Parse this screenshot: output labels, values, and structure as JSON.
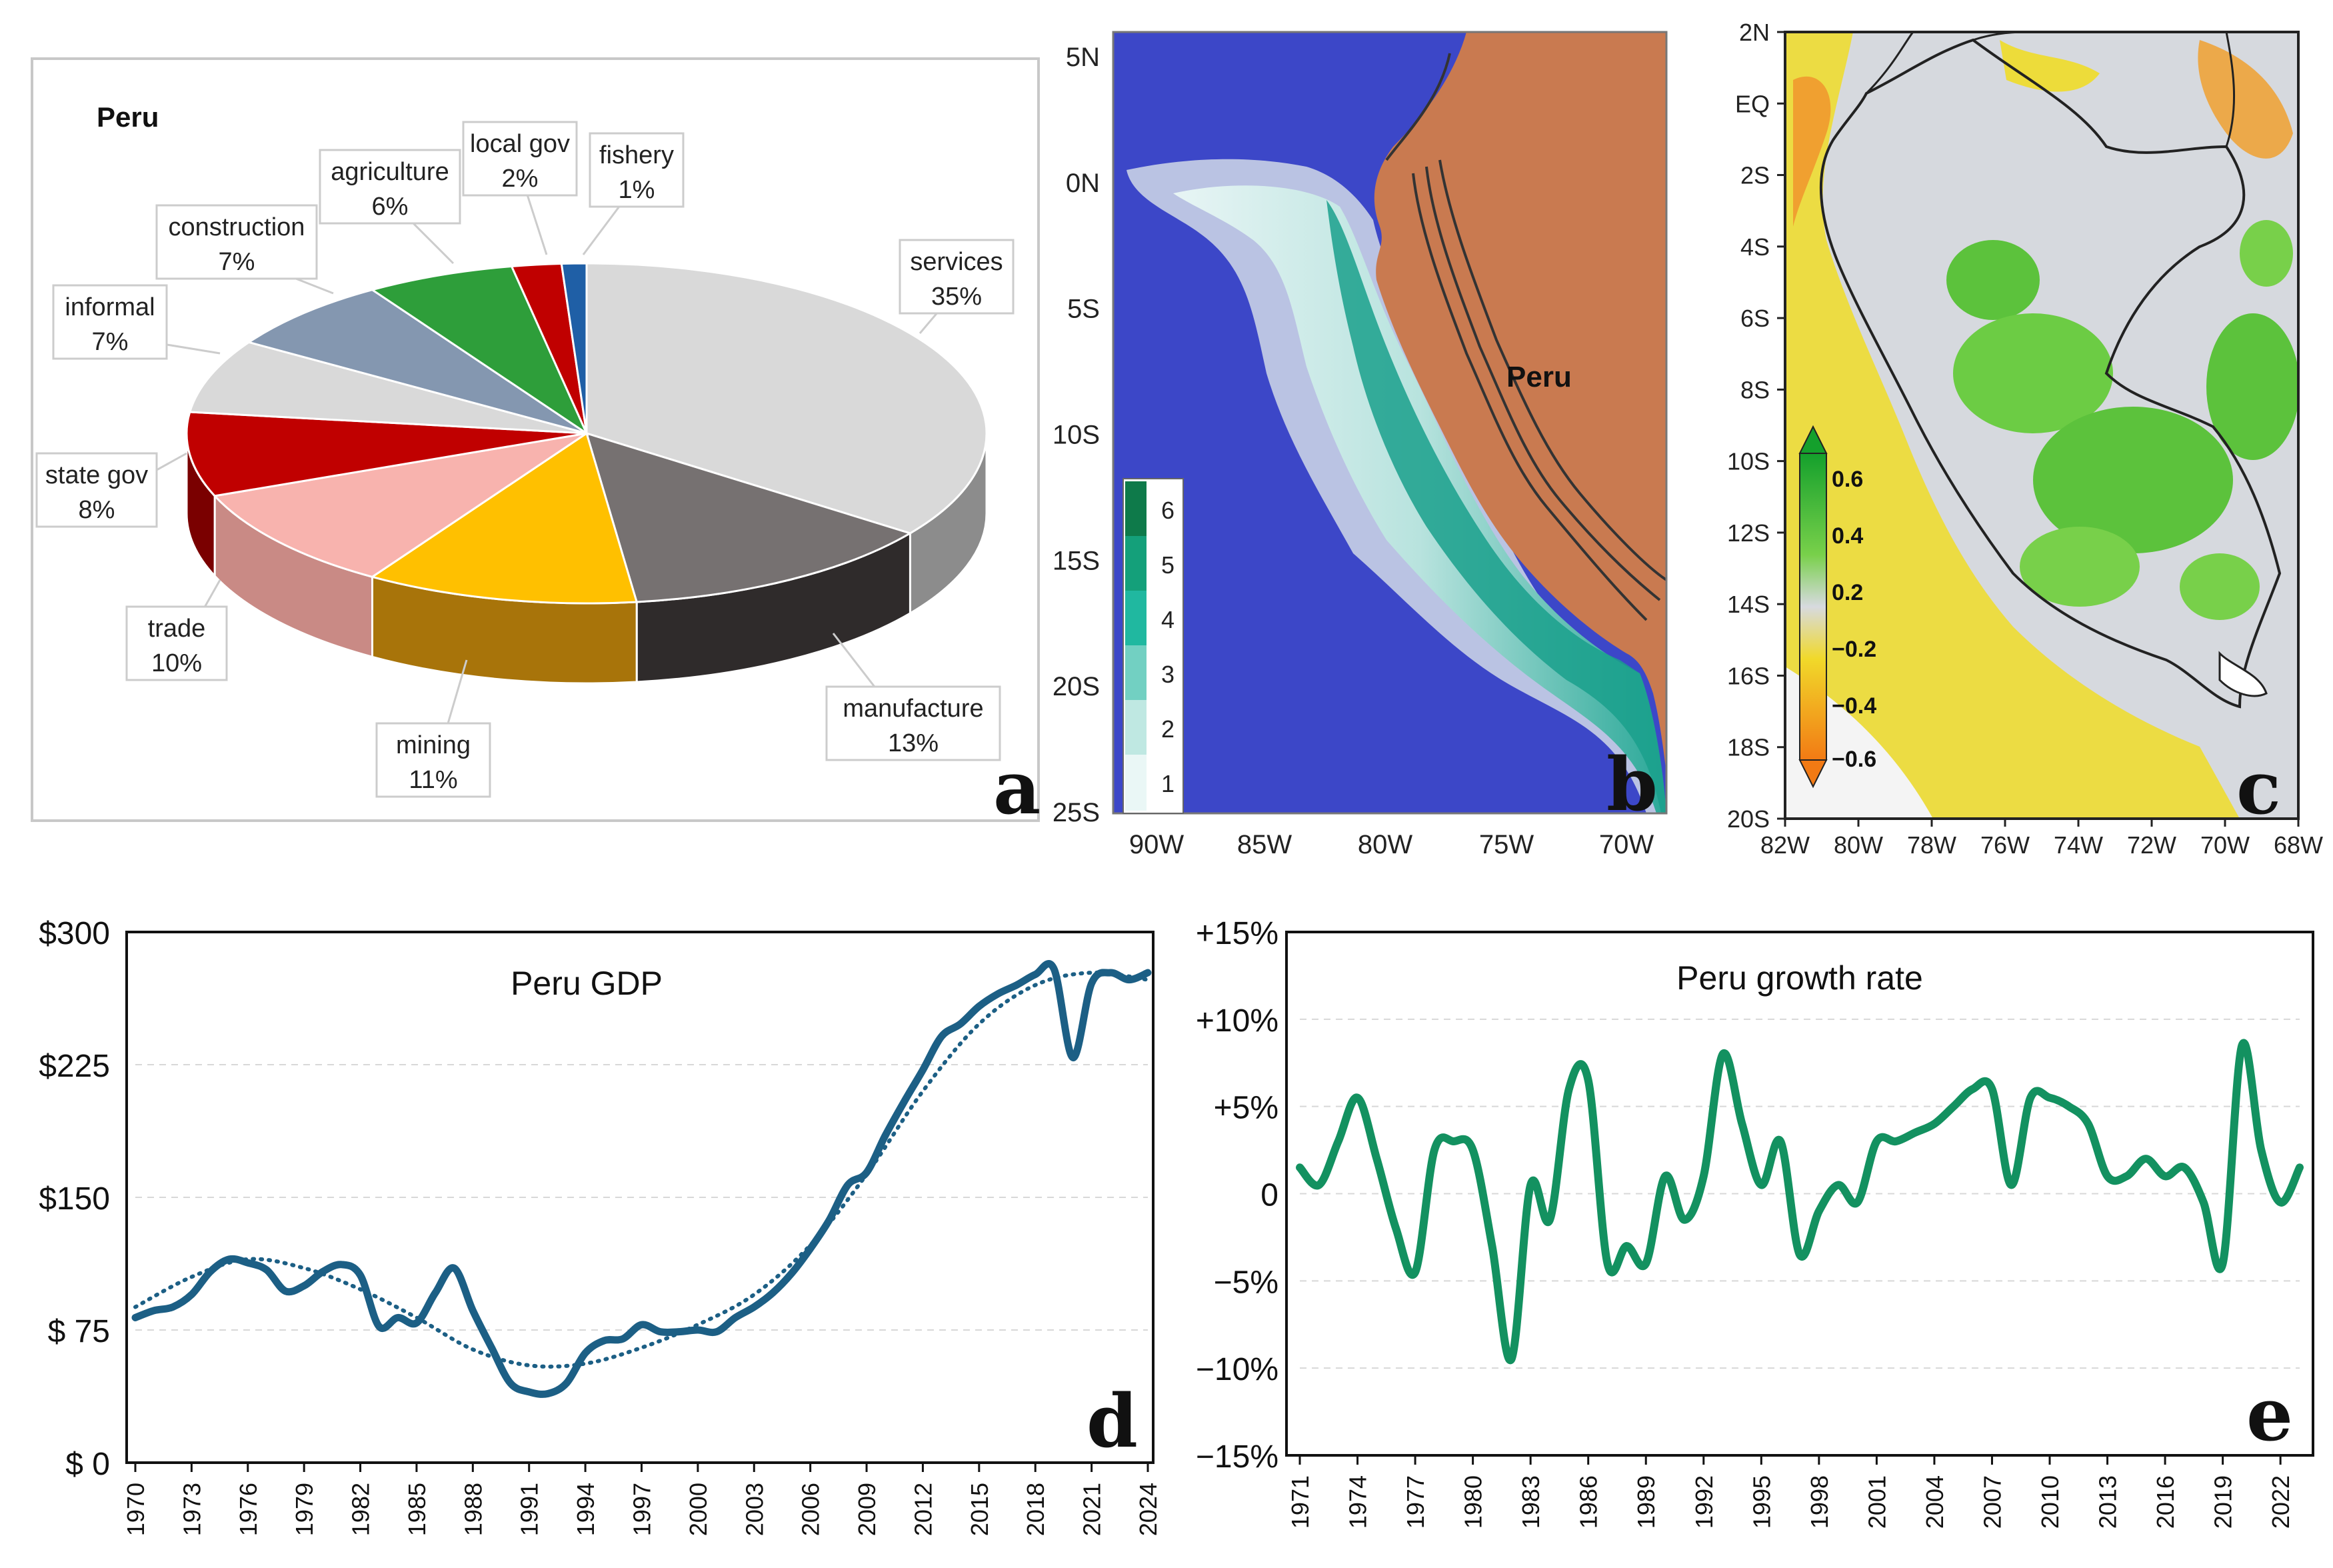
{
  "pie": {
    "title": "Peru",
    "panel_letter": "a",
    "slices": [
      {
        "name": "services",
        "pct": "35%",
        "value": 35,
        "color": "#D9D9D9",
        "side": "#8C8C8C"
      },
      {
        "name": "manufacture",
        "pct": "13%",
        "value": 13,
        "color": "#767171",
        "side": "#2F2B2B"
      },
      {
        "name": "mining",
        "pct": "11%",
        "value": 11,
        "color": "#FFC000",
        "side": "#A8740A"
      },
      {
        "name": "trade",
        "pct": "10%",
        "value": 10,
        "color": "#F8B3AE",
        "side": "#C98A85"
      },
      {
        "name": "state gov",
        "pct": "8%",
        "value": 8,
        "color": "#C00000",
        "side": "#7A0000"
      },
      {
        "name": "informal",
        "pct": "7%",
        "value": 7,
        "color": "#D9D9D9",
        "side": "#9C9C9C"
      },
      {
        "name": "construction",
        "pct": "7%",
        "value": 7,
        "color": "#8497B0",
        "side": "#55667D"
      },
      {
        "name": "agriculture",
        "pct": "6%",
        "value": 6,
        "color": "#2E9E3A",
        "side": "#1C6B24"
      },
      {
        "name": "local gov",
        "pct": "2%",
        "value": 2,
        "color": "#C00000",
        "side": "#7A0000"
      },
      {
        "name": "fishery",
        "pct": "1%",
        "value": 1,
        "color": "#1F5FA6",
        "side": "#143F70"
      }
    ]
  },
  "map_b": {
    "panel_letter": "b",
    "region_label": "Peru",
    "lat_ticks": [
      "5N",
      "0N",
      "5S",
      "10S",
      "15S",
      "20S",
      "25S"
    ],
    "lon_ticks": [
      "90W",
      "85W",
      "80W",
      "75W",
      "70W"
    ],
    "legend": [
      "6",
      "5",
      "4",
      "3",
      "2",
      "1"
    ],
    "ocean_color": "#3C47C8",
    "land_color": "#C97A50"
  },
  "map_c": {
    "panel_letter": "c",
    "lat_ticks": [
      "2N",
      "EQ",
      "2S",
      "4S",
      "6S",
      "8S",
      "10S",
      "12S",
      "14S",
      "16S",
      "18S",
      "20S"
    ],
    "lon_ticks": [
      "82W",
      "80W",
      "78W",
      "76W",
      "74W",
      "72W",
      "70W",
      "68W"
    ],
    "legend": [
      "0.6",
      "0.4",
      "0.2",
      "−0.2",
      "−0.4",
      "−0.6"
    ]
  },
  "chart_data": [
    {
      "type": "line",
      "title": "Peru GDP",
      "panel_letter": "d",
      "ylim": [
        0,
        300
      ],
      "yticks": [
        {
          "value": 300,
          "label": "$300"
        },
        {
          "value": 225,
          "label": "$225"
        },
        {
          "value": 150,
          "label": "$150"
        },
        {
          "value": 75,
          "label": "$  75"
        },
        {
          "value": 0,
          "label": "$    0"
        }
      ],
      "xlim": [
        1970,
        2024
      ],
      "xticks": [
        "1970",
        "1973",
        "1976",
        "1979",
        "1982",
        "1985",
        "1988",
        "1991",
        "1994",
        "1997",
        "2000",
        "2003",
        "2006",
        "2009",
        "2012",
        "2015",
        "2018",
        "2021",
        "2024"
      ],
      "series": [
        {
          "name": "GDP",
          "color": "#1C5F85",
          "x": [
            1970,
            1971,
            1972,
            1973,
            1974,
            1975,
            1976,
            1977,
            1978,
            1979,
            1980,
            1981,
            1982,
            1983,
            1984,
            1985,
            1986,
            1987,
            1988,
            1989,
            1990,
            1991,
            1992,
            1993,
            1994,
            1995,
            1996,
            1997,
            1998,
            1999,
            2000,
            2001,
            2002,
            2003,
            2004,
            2005,
            2006,
            2007,
            2008,
            2009,
            2010,
            2011,
            2012,
            2013,
            2014,
            2015,
            2016,
            2017,
            2018,
            2019,
            2020,
            2021,
            2022,
            2023,
            2024
          ],
          "values": [
            82,
            86,
            88,
            95,
            108,
            115,
            113,
            109,
            97,
            100,
            108,
            112,
            106,
            77,
            82,
            79,
            96,
            110,
            86,
            65,
            45,
            40,
            39,
            45,
            62,
            69,
            70,
            78,
            74,
            74,
            75,
            74,
            82,
            88,
            96,
            107,
            121,
            137,
            157,
            164,
            185,
            204,
            222,
            241,
            248,
            258,
            265,
            270,
            276,
            279,
            229,
            271,
            277,
            273,
            277
          ]
        },
        {
          "name": "trend",
          "color": "#1C5F85",
          "dotted": true,
          "x": [
            1970,
            1973,
            1976,
            1979,
            1982,
            1985,
            1988,
            1991,
            1994,
            1997,
            2000,
            2003,
            2006,
            2009,
            2012,
            2015,
            2018,
            2021,
            2024
          ],
          "values": [
            88,
            105,
            115,
            110,
            98,
            82,
            64,
            55,
            56,
            65,
            78,
            95,
            123,
            163,
            210,
            248,
            270,
            277,
            273
          ]
        }
      ]
    },
    {
      "type": "line",
      "title": "Peru growth rate",
      "panel_letter": "e",
      "ylim": [
        -15,
        15
      ],
      "yticks": [
        {
          "value": 15,
          "label": "+15%"
        },
        {
          "value": 10,
          "label": "+10%"
        },
        {
          "value": 5,
          "label": "+5%"
        },
        {
          "value": 0,
          "label": "0"
        },
        {
          "value": -5,
          "label": "−5%"
        },
        {
          "value": -10,
          "label": "−10%"
        },
        {
          "value": -15,
          "label": "−15%"
        }
      ],
      "xlim": [
        1971,
        2023
      ],
      "xticks": [
        "1971",
        "1974",
        "1977",
        "1980",
        "1983",
        "1986",
        "1989",
        "1992",
        "1995",
        "1998",
        "2001",
        "2004",
        "2007",
        "2010",
        "2013",
        "2016",
        "2019",
        "2022"
      ],
      "series": [
        {
          "name": "growth",
          "color": "#139160",
          "x": [
            1971,
            1972,
            1973,
            1974,
            1975,
            1976,
            1977,
            1978,
            1979,
            1980,
            1981,
            1982,
            1983,
            1984,
            1985,
            1986,
            1987,
            1988,
            1989,
            1990,
            1991,
            1992,
            1993,
            1994,
            1995,
            1996,
            1997,
            1998,
            1999,
            2000,
            2001,
            2002,
            2003,
            2004,
            2005,
            2006,
            2007,
            2008,
            2009,
            2010,
            2011,
            2012,
            2013,
            2014,
            2015,
            2016,
            2017,
            2018,
            2019,
            2020,
            2021,
            2022,
            2023
          ],
          "values": [
            1.5,
            0.5,
            3.0,
            5.5,
            2.0,
            -2.0,
            -4.5,
            2.5,
            3.0,
            2.5,
            -3.0,
            -9.5,
            0.5,
            -1.5,
            6.0,
            6.5,
            -4.0,
            -3.0,
            -4.0,
            1.0,
            -1.5,
            1.0,
            8.0,
            4.0,
            0.5,
            3.0,
            -3.5,
            -1.0,
            0.5,
            -0.5,
            3.0,
            3.0,
            3.5,
            4.0,
            5.0,
            6.0,
            6.0,
            0.5,
            5.5,
            5.5,
            5.0,
            4.0,
            1.0,
            1.0,
            2.0,
            1.0,
            1.5,
            -0.5,
            -4.0,
            8.5,
            2.5,
            -0.5,
            1.5
          ]
        }
      ]
    }
  ]
}
